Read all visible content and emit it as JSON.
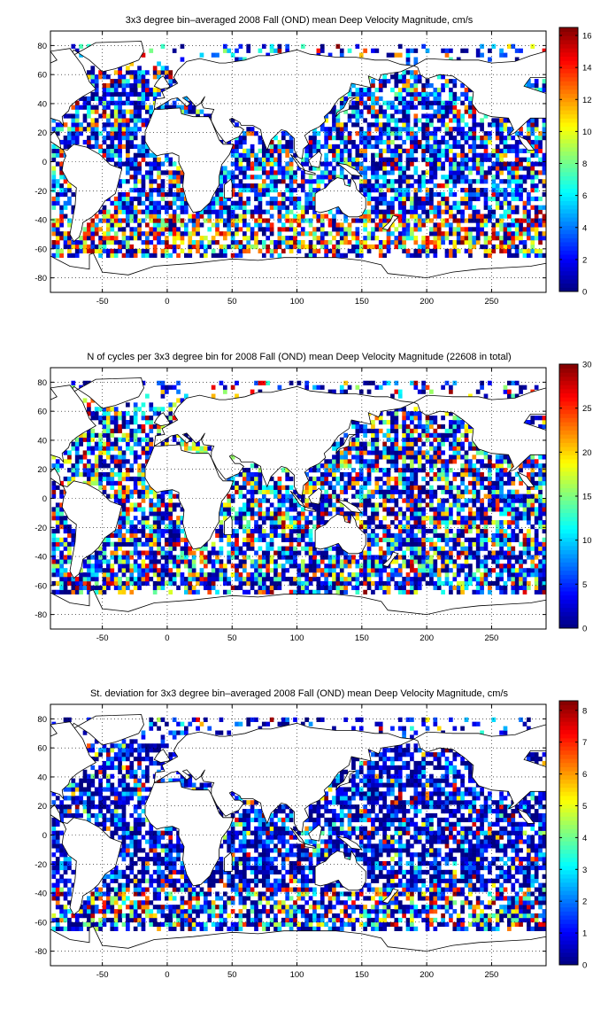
{
  "chart_data": [
    {
      "type": "heatmap",
      "title": "3x3 degree bin–averaged 2008 Fall (OND) mean Deep Velocity Magnitude, cm/s",
      "xlim": [
        -90,
        292
      ],
      "ylim": [
        -90,
        90
      ],
      "xticks": [
        -50,
        0,
        50,
        100,
        150,
        200,
        250
      ],
      "yticks": [
        80,
        60,
        40,
        20,
        0,
        -20,
        -40,
        -60,
        -80
      ],
      "grid": true,
      "colorbar": {
        "range": [
          0,
          16.5
        ],
        "ticks": [
          0,
          2,
          4,
          6,
          8,
          10,
          12,
          14,
          16
        ]
      },
      "colormap": "jet",
      "bin_size_deg": 3,
      "seed": 7,
      "profile": "velocity"
    },
    {
      "type": "heatmap",
      "title": "N of cycles per 3x3 degree bin for 2008 Fall (OND) mean Deep Velocity Magnitude (22608 in total)",
      "xlim": [
        -90,
        292
      ],
      "ylim": [
        -90,
        90
      ],
      "xticks": [
        -50,
        0,
        50,
        100,
        150,
        200,
        250
      ],
      "yticks": [
        80,
        60,
        40,
        20,
        0,
        -20,
        -40,
        -60,
        -80
      ],
      "grid": true,
      "colorbar": {
        "range": [
          0,
          30
        ],
        "ticks": [
          0,
          5,
          10,
          15,
          20,
          25,
          30
        ]
      },
      "colormap": "jet",
      "bin_size_deg": 3,
      "seed": 19,
      "profile": "count"
    },
    {
      "type": "heatmap",
      "title": "St. deviation for 3x3 degree bin–averaged 2008 Fall (OND) mean Deep Velocity Magnitude, cm/s",
      "xlim": [
        -90,
        292
      ],
      "ylim": [
        -90,
        90
      ],
      "xticks": [
        -50,
        0,
        50,
        100,
        150,
        200,
        250
      ],
      "yticks": [
        80,
        60,
        40,
        20,
        0,
        -20,
        -40,
        -60,
        -80
      ],
      "grid": true,
      "colorbar": {
        "range": [
          0,
          8.3
        ],
        "ticks": [
          0,
          1,
          2,
          3,
          4,
          5,
          6,
          7,
          8
        ]
      },
      "colormap": "jet",
      "bin_size_deg": 3,
      "seed": 31,
      "profile": "stdev"
    }
  ]
}
